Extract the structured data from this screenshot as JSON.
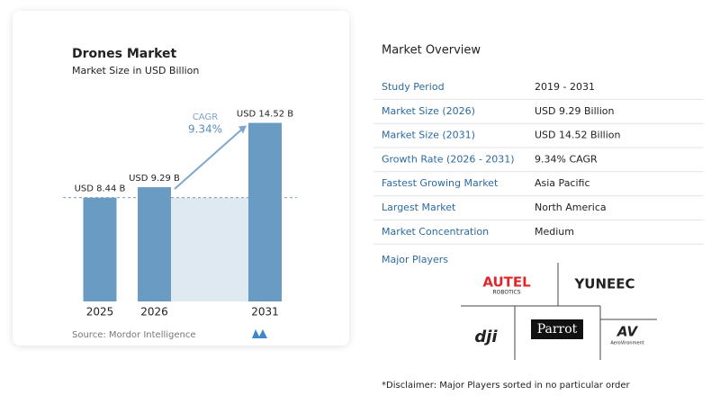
{
  "chart_data": {
    "type": "bar",
    "title": "Drones Market",
    "subtitle": "Market Size in USD Billion",
    "categories": [
      "2025",
      "2026",
      "2031"
    ],
    "values": [
      8.44,
      9.29,
      14.52
    ],
    "value_labels": [
      "USD 8.44 B",
      "USD 9.29 B",
      "USD 14.52 B"
    ],
    "color": "#6a9bc3",
    "ylim": [
      0,
      15
    ],
    "cagr_label": "CAGR",
    "cagr_value": "9.34%",
    "source": "Source: Mordor Intelligence"
  },
  "overview": {
    "title": "Market Overview",
    "rows": [
      [
        "Study Period",
        "2019 - 2031"
      ],
      [
        "Market Size (2026)",
        "USD 9.29 Billion"
      ],
      [
        "Market Size (2031)",
        "USD 14.52 Billion"
      ],
      [
        "Growth Rate (2026 - 2031)",
        "9.34% CAGR"
      ],
      [
        "Fastest Growing Market",
        "Asia Pacific"
      ],
      [
        "Largest Market",
        "North America"
      ],
      [
        "Market Concentration",
        "Medium"
      ]
    ]
  },
  "players": {
    "title": "Major Players",
    "autel": "AUTEL",
    "autel_sub": "ROBOTICS",
    "yuneec": "YUNEEC",
    "dji": "dji",
    "parrot": "Parrot",
    "av": "AV",
    "av_sub": "AeroVironment"
  },
  "disclaimer": "*Disclaimer: Major Players sorted in no particular order"
}
